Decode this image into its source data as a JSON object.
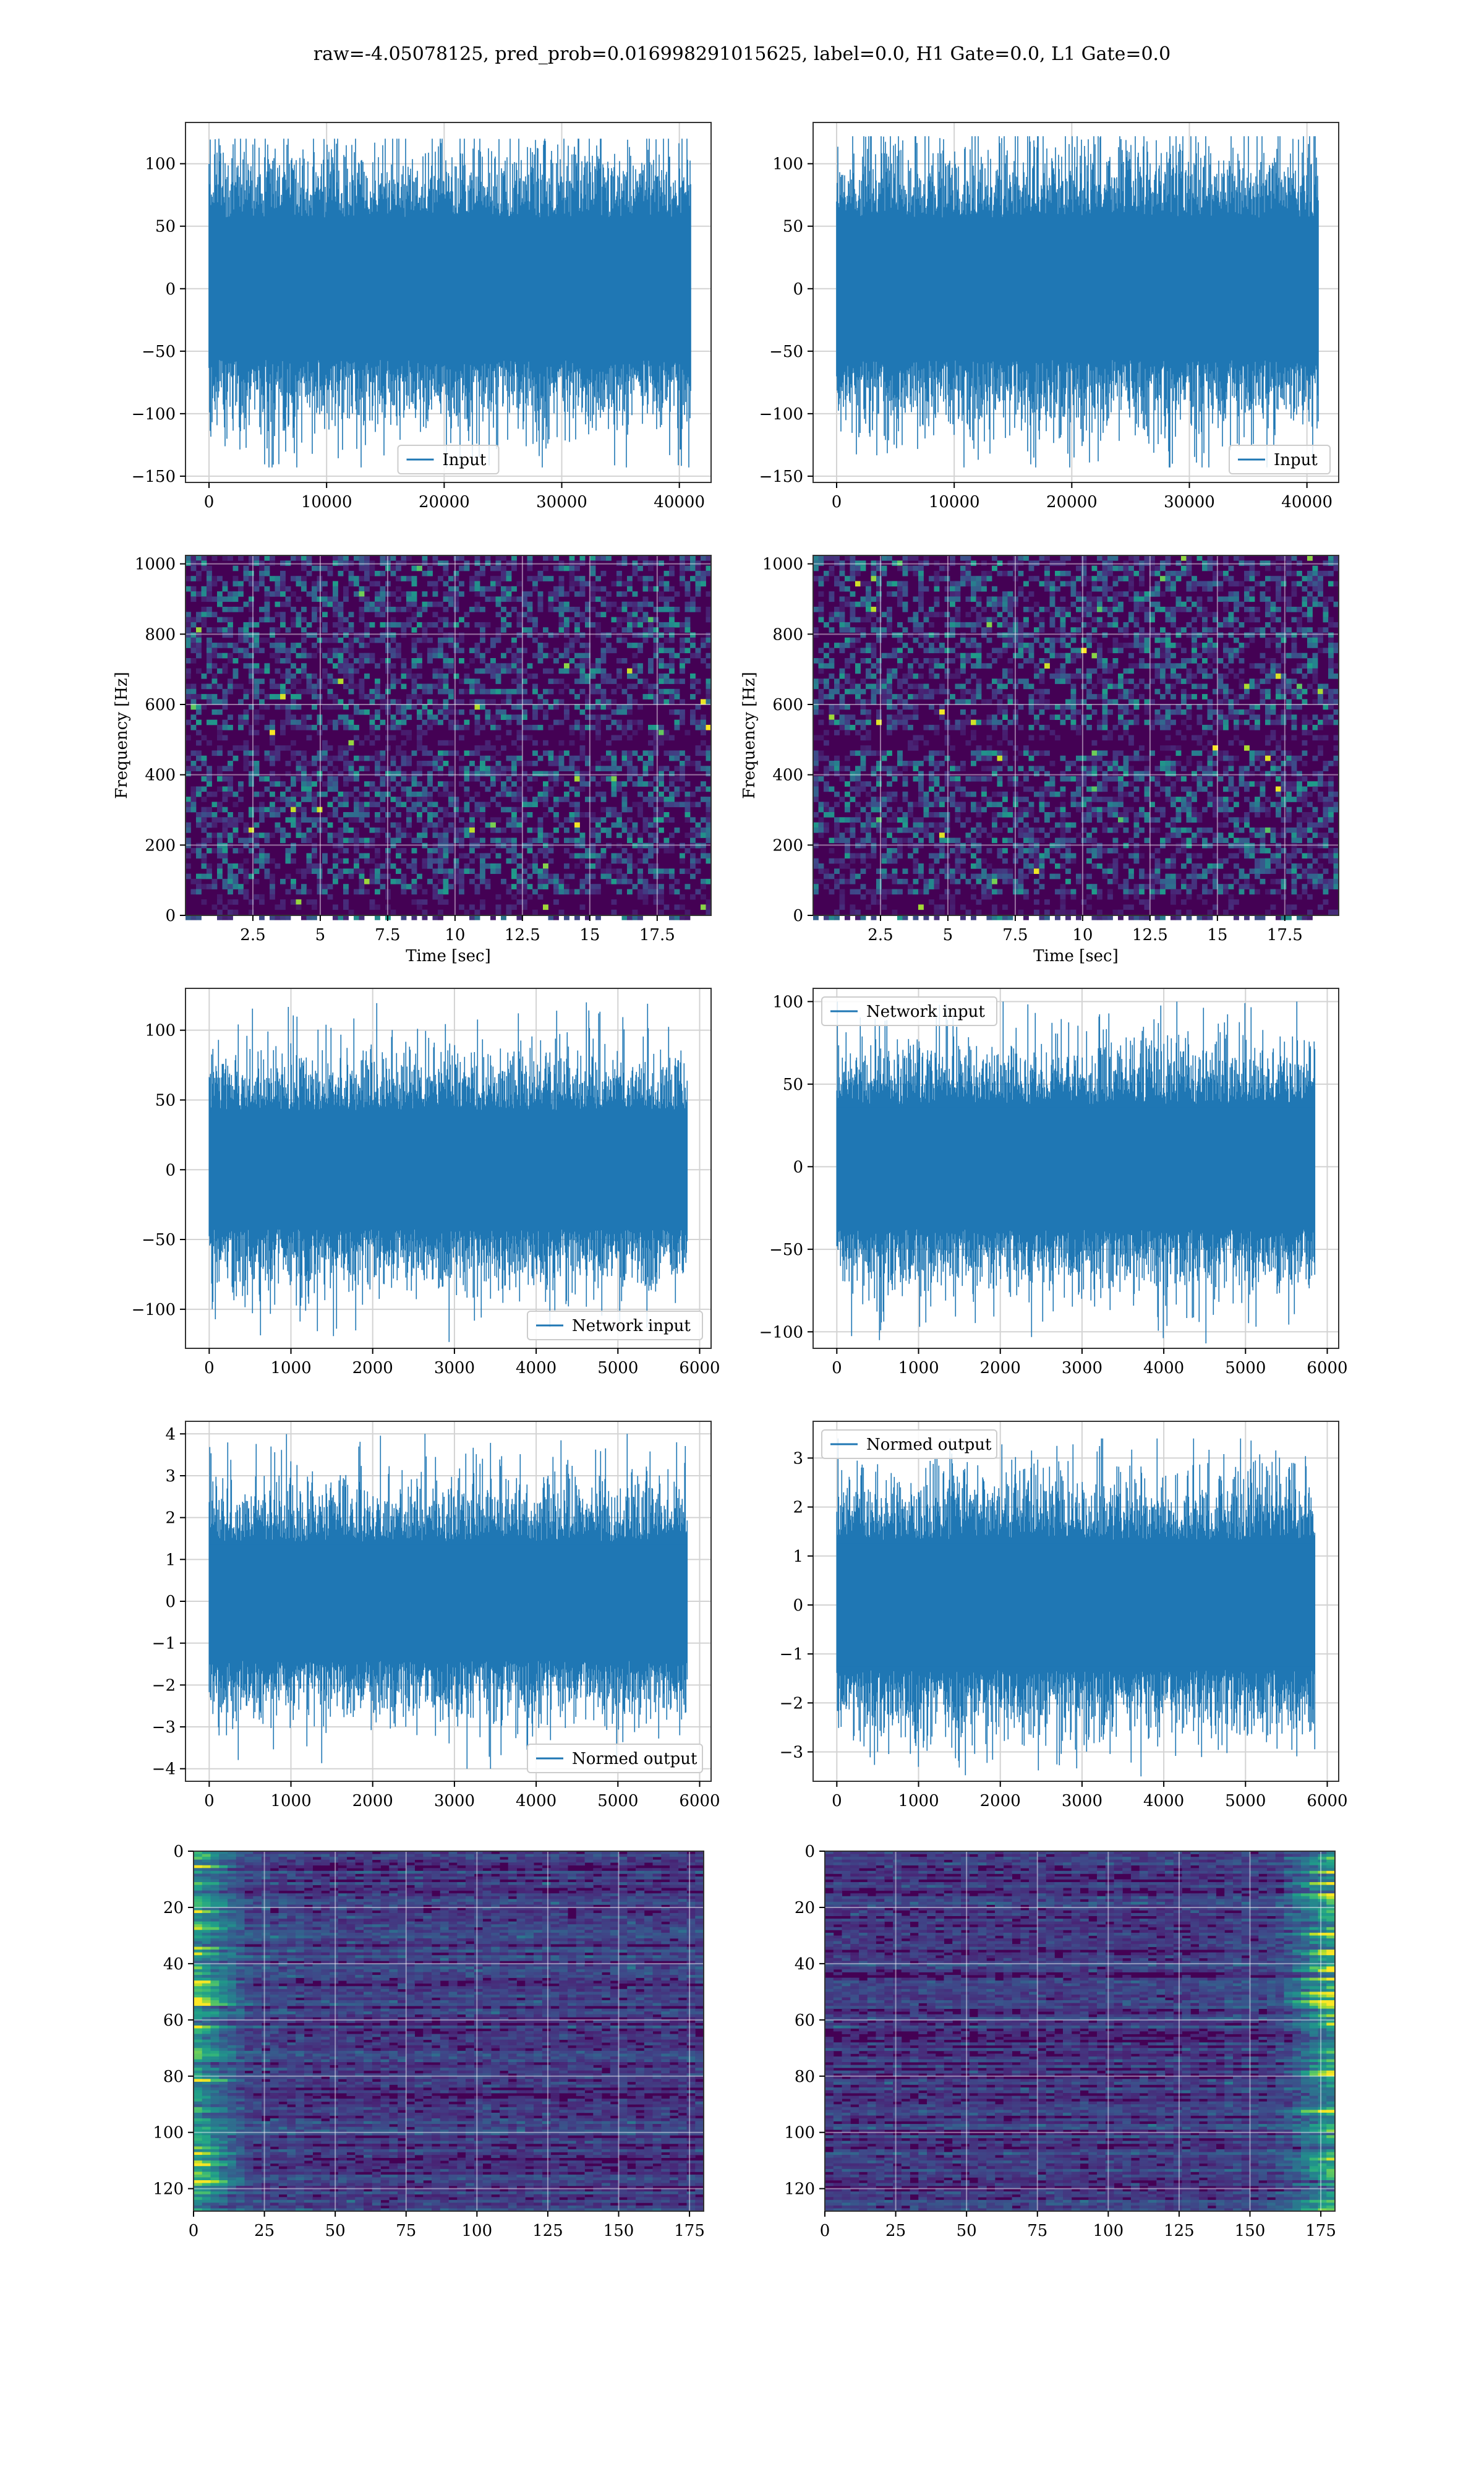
{
  "title": "raw=-4.05078125, pred_prob=0.016998291015625, label=0.0, H1 Gate=0.0, L1 Gate=0.0",
  "colors": {
    "line": "#1f77b4",
    "grid": "#d3d3d3",
    "axis": "#333333",
    "viridis": [
      "#440154",
      "#482878",
      "#3e4989",
      "#31688e",
      "#26828e",
      "#1f9e89",
      "#35b779",
      "#6ece58",
      "#b5de2b",
      "#fde725"
    ]
  },
  "chart_data": [
    {
      "id": "input-left",
      "type": "line",
      "series": [
        {
          "name": "Input"
        }
      ],
      "legend": "lower-center",
      "xlim": [
        -2000,
        42700
      ],
      "ylim": [
        -155,
        133
      ],
      "xticks": [
        0,
        10000,
        20000,
        30000,
        40000
      ],
      "yticks": [
        -150,
        -100,
        -50,
        0,
        50,
        100
      ],
      "signal": {
        "n": 40960,
        "envelope": 60,
        "peak_max": 120,
        "peak_min": -143
      }
    },
    {
      "id": "input-right",
      "type": "line",
      "series": [
        {
          "name": "Input"
        }
      ],
      "legend": "lower-right",
      "xlim": [
        -2000,
        42700
      ],
      "ylim": [
        -155,
        133
      ],
      "xticks": [
        0,
        10000,
        20000,
        30000,
        40000
      ],
      "yticks": [
        -150,
        -100,
        -50,
        0,
        50,
        100
      ],
      "signal": {
        "n": 40960,
        "envelope": 60,
        "peak_max": 122,
        "peak_min": -143
      }
    },
    {
      "id": "spec-left",
      "type": "heatmap",
      "xlabel": "Time [sec]",
      "ylabel": "Frequency [Hz]",
      "xlim": [
        0,
        19.5
      ],
      "ylim": [
        0,
        1024
      ],
      "xticks": [
        2.5,
        5.0,
        7.5,
        10.0,
        12.5,
        15.0,
        17.5
      ],
      "yticks": [
        0,
        200,
        400,
        600,
        800,
        1000
      ],
      "dark_bands_hz": [
        500,
        30
      ]
    },
    {
      "id": "spec-right",
      "type": "heatmap",
      "xlabel": "Time [sec]",
      "ylabel": "Frequency [Hz]",
      "xlim": [
        0,
        19.5
      ],
      "ylim": [
        0,
        1024
      ],
      "xticks": [
        2.5,
        5.0,
        7.5,
        10.0,
        12.5,
        15.0,
        17.5
      ],
      "yticks": [
        0,
        200,
        400,
        600,
        800,
        1000
      ],
      "dark_bands_hz": [
        500,
        30
      ]
    },
    {
      "id": "network-left",
      "type": "line",
      "series": [
        {
          "name": "Network input"
        }
      ],
      "legend": "lower-right",
      "xlim": [
        -290,
        6140
      ],
      "ylim": [
        -128,
        130
      ],
      "xticks": [
        0,
        1000,
        2000,
        3000,
        4000,
        5000,
        6000
      ],
      "yticks": [
        -100,
        -50,
        0,
        50,
        100
      ],
      "signal": {
        "n": 5850,
        "envelope": 45,
        "peak_max": 120,
        "peak_min": -125
      }
    },
    {
      "id": "network-right",
      "type": "line",
      "series": [
        {
          "name": "Network input"
        }
      ],
      "legend": "upper-left",
      "xlim": [
        -290,
        6140
      ],
      "ylim": [
        -110,
        108
      ],
      "xticks": [
        0,
        1000,
        2000,
        3000,
        4000,
        5000,
        6000
      ],
      "yticks": [
        -100,
        -50,
        0,
        50,
        100
      ],
      "signal": {
        "n": 5850,
        "envelope": 40,
        "peak_max": 100,
        "peak_min": -107
      }
    },
    {
      "id": "normed-left",
      "type": "line",
      "series": [
        {
          "name": "Normed output"
        }
      ],
      "legend": "lower-right",
      "xlim": [
        -290,
        6140
      ],
      "ylim": [
        -4.3,
        4.3
      ],
      "xticks": [
        0,
        1000,
        2000,
        3000,
        4000,
        5000,
        6000
      ],
      "yticks": [
        -4,
        -3,
        -2,
        -1,
        0,
        1,
        2,
        3,
        4
      ],
      "signal": {
        "n": 5850,
        "envelope": 1.5,
        "peak_max": 4.0,
        "peak_min": -4.0
      }
    },
    {
      "id": "normed-right",
      "type": "line",
      "series": [
        {
          "name": "Normed output"
        }
      ],
      "legend": "upper-left",
      "xlim": [
        -290,
        6140
      ],
      "ylim": [
        -3.6,
        3.75
      ],
      "xticks": [
        0,
        1000,
        2000,
        3000,
        4000,
        5000,
        6000
      ],
      "yticks": [
        -3,
        -2,
        -1,
        0,
        1,
        2,
        3
      ],
      "signal": {
        "n": 5850,
        "envelope": 1.4,
        "peak_max": 3.4,
        "peak_min": -3.5
      }
    },
    {
      "id": "feature-left",
      "type": "heatmap",
      "xlim": [
        0,
        180
      ],
      "ylim": [
        128,
        0
      ],
      "xticks": [
        0,
        25,
        50,
        75,
        100,
        125,
        150,
        175
      ],
      "yticks": [
        0,
        20,
        40,
        60,
        80,
        100,
        120
      ],
      "hot_side": "left"
    },
    {
      "id": "feature-right",
      "type": "heatmap",
      "xlim": [
        0,
        180
      ],
      "ylim": [
        128,
        0
      ],
      "xticks": [
        0,
        25,
        50,
        75,
        100,
        125,
        150,
        175
      ],
      "yticks": [
        0,
        20,
        40,
        60,
        80,
        100,
        120
      ],
      "hot_side": "right"
    }
  ]
}
